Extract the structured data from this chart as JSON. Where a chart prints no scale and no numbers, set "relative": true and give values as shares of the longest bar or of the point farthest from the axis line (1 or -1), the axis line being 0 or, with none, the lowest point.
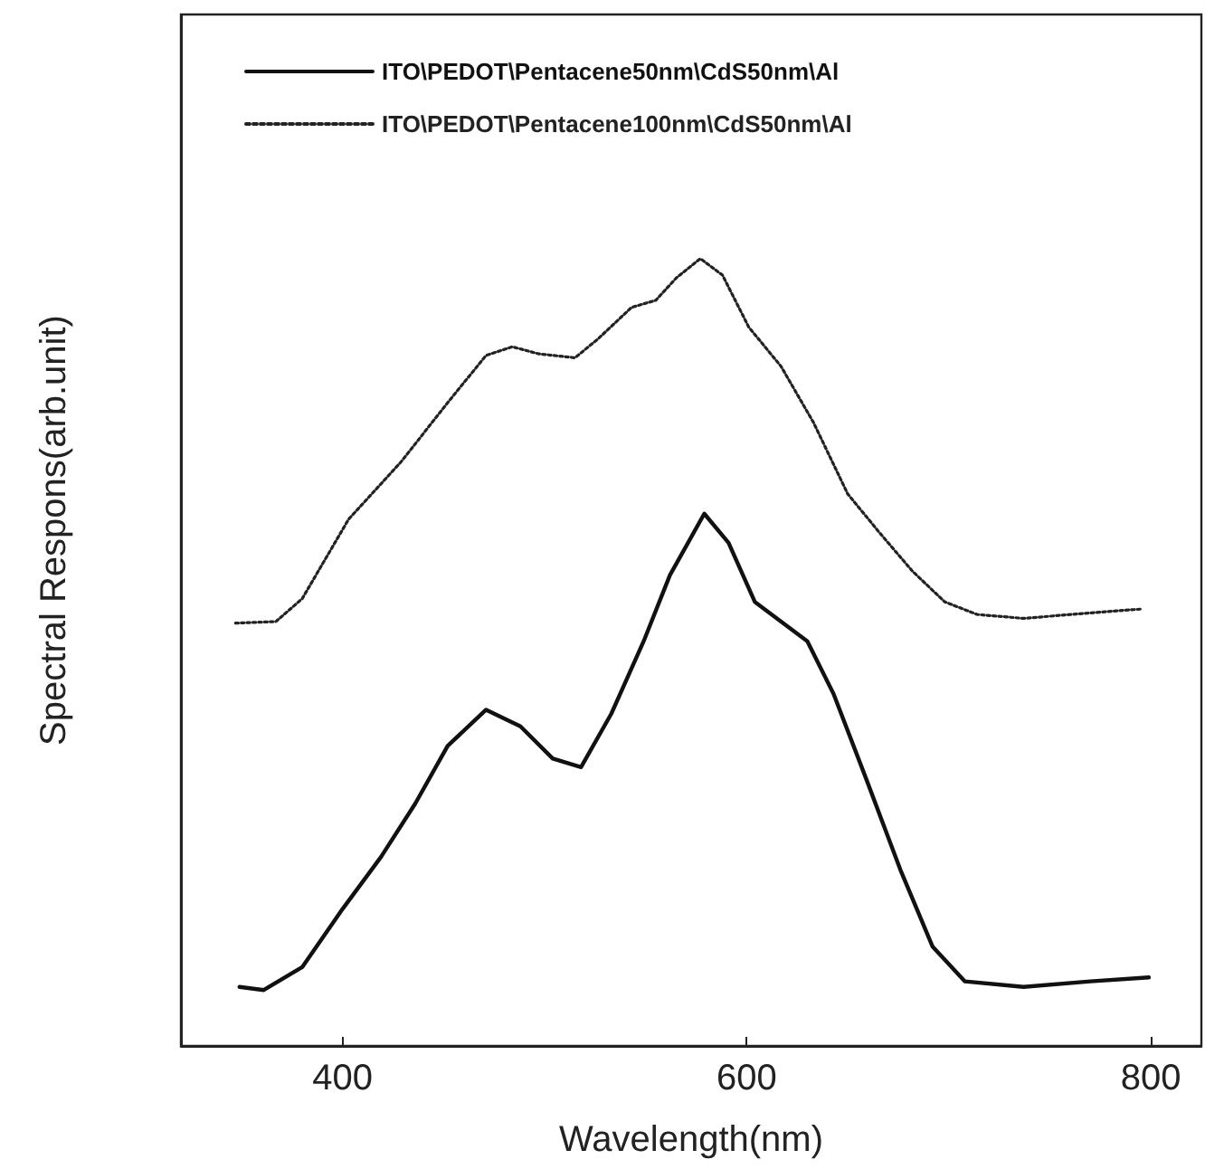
{
  "chart_data": {
    "type": "line",
    "xlabel": "Wavelength(nm)",
    "ylabel": "Spectral Respons(arb.unit)",
    "relative": true,
    "xlim": [
      320,
      825
    ],
    "xticks": [
      400,
      600,
      800
    ],
    "legend": "top",
    "grid": false,
    "marker": "none",
    "series": [
      {
        "name": "ITO\\PEDOT\\Pentacene50nm\\CdS50nm\\Al",
        "color": "#111111",
        "line_style": "solid",
        "x": [
          349,
          361,
          380,
          400,
          419,
          436,
          452,
          471,
          488,
          504,
          518,
          533,
          549,
          562,
          579,
          591,
          604,
          617,
          630,
          643,
          659,
          676,
          692,
          708,
          737,
          770,
          799
        ],
        "values": [
          0.075,
          0.071,
          0.1,
          0.174,
          0.24,
          0.308,
          0.381,
          0.427,
          0.406,
          0.365,
          0.354,
          0.422,
          0.514,
          0.598,
          0.676,
          0.639,
          0.564,
          0.539,
          0.514,
          0.447,
          0.34,
          0.224,
          0.126,
          0.082,
          0.075,
          0.082,
          0.087
        ]
      },
      {
        "name": "ITO\\PEDOT\\Pentacene100nm\\CdS50nm\\Al",
        "color": "#222222",
        "line_style": "dotted",
        "x": [
          347,
          367,
          380,
          403,
          429,
          452,
          471,
          484,
          497,
          515,
          526,
          543,
          555,
          565,
          577,
          588,
          601,
          617,
          633,
          650,
          666,
          682,
          698,
          714,
          737,
          770,
          796
        ],
        "values": [
          0.537,
          0.539,
          0.568,
          0.669,
          0.742,
          0.817,
          0.877,
          0.888,
          0.879,
          0.874,
          0.897,
          0.938,
          0.947,
          0.975,
          1.0,
          0.979,
          0.913,
          0.863,
          0.792,
          0.701,
          0.651,
          0.603,
          0.564,
          0.548,
          0.543,
          0.55,
          0.555
        ]
      }
    ]
  }
}
